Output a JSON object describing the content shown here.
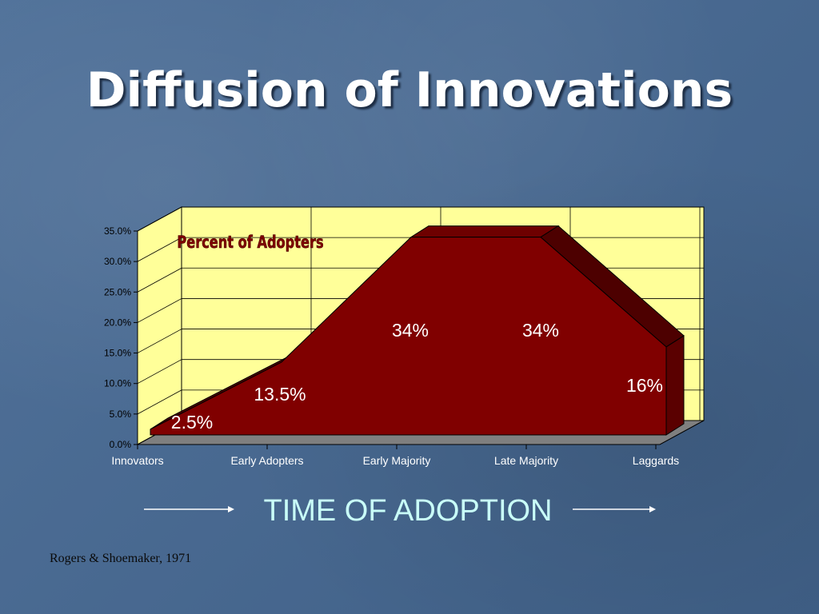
{
  "slide": {
    "title": "Diffusion of Innovations",
    "citation": "Rogers & Shoemaker, 1971"
  },
  "colors": {
    "background": "#4a6a91",
    "plot_face": "#ffff99",
    "area_fill": "#800000",
    "area_dark": "#4d0000",
    "floor": "#7f7f7f",
    "caption": "#c9fff8"
  },
  "chart_data": {
    "type": "area",
    "title": "Percent of Adopters",
    "xlabel": "TIME OF ADOPTION",
    "ylabel": "",
    "categories": [
      "Innovators",
      "Early Adopters",
      "Early Majority",
      "Late Majority",
      "Laggards"
    ],
    "values": [
      2.5,
      13.5,
      34,
      34,
      16
    ],
    "data_labels": [
      "2.5%",
      "13.5%",
      "34%",
      "34%",
      "16%"
    ],
    "yticks": [
      "0.0%",
      "5.0%",
      "10.0%",
      "15.0%",
      "20.0%",
      "25.0%",
      "30.0%",
      "35.0%"
    ],
    "ylim": [
      0,
      35
    ],
    "three_d": true,
    "grid": true
  }
}
